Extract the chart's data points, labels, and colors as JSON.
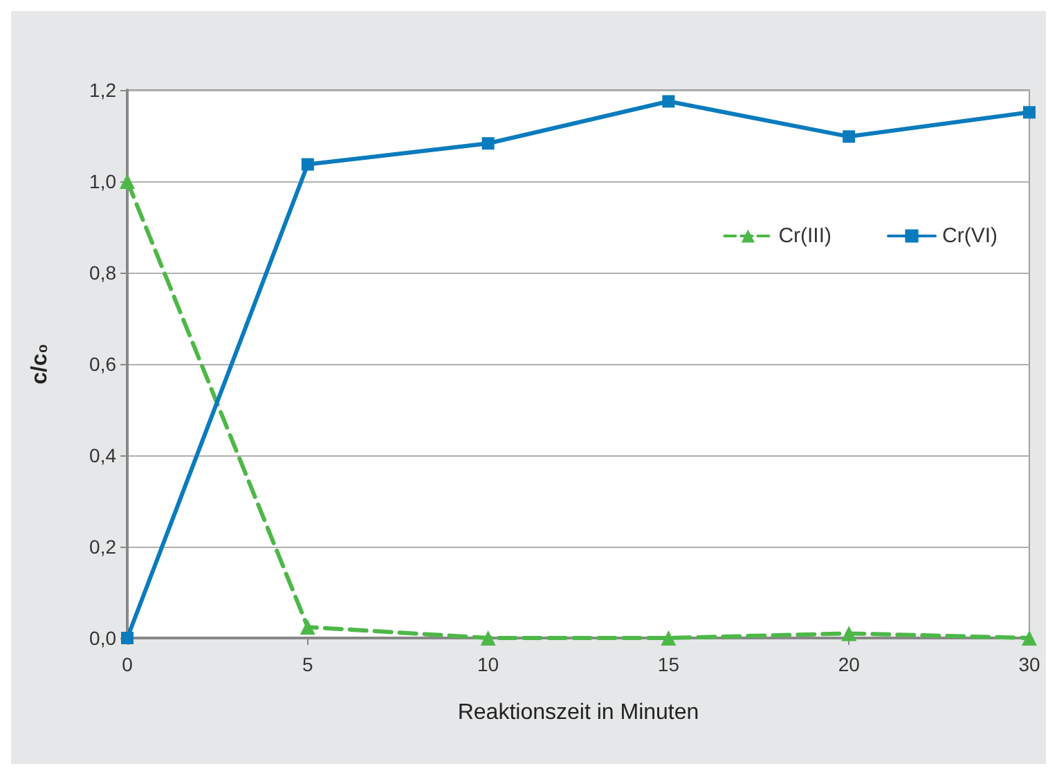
{
  "chart_data": {
    "type": "line",
    "xlabel": "Reaktionszeit in Minuten",
    "ylabel": "c/c₀",
    "categories": [
      "0",
      "5",
      "10",
      "15",
      "20",
      "30"
    ],
    "series": [
      {
        "name": "Cr(III)",
        "color": "#4db848",
        "values": [
          1.0,
          0.024,
          0.0,
          0.0,
          0.01,
          0.0
        ],
        "marker": "triangle",
        "line_style": "dashed"
      },
      {
        "name": "Cr(VI)",
        "color": "#0a7bbd",
        "values": [
          0.0,
          1.037,
          1.083,
          1.175,
          1.098,
          1.151
        ],
        "marker": "square",
        "line_style": "solid"
      }
    ],
    "ylim": [
      0,
      1.2
    ],
    "yticks": [
      {
        "value": 0,
        "label": "0,0"
      },
      {
        "value": 0.2,
        "label": "0,2"
      },
      {
        "value": 0.4,
        "label": "0,4"
      },
      {
        "value": 0.6,
        "label": "0,6"
      },
      {
        "value": 0.8,
        "label": "0,8"
      },
      {
        "value": 1.0,
        "label": "1,0"
      },
      {
        "value": 1.2,
        "label": "1,2"
      }
    ],
    "grid": "y",
    "legend": "top right"
  }
}
